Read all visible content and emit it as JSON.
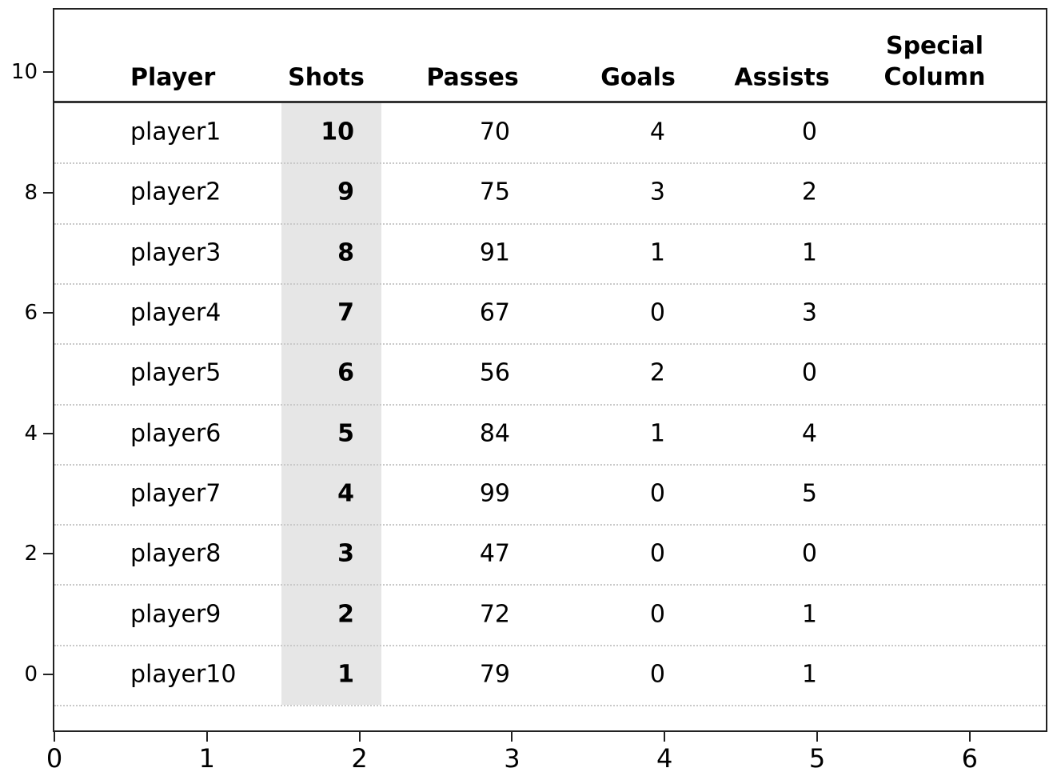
{
  "chart_data": {
    "type": "table",
    "title": "",
    "columns": [
      "Player",
      "Shots",
      "Passes",
      "Goals",
      "Assists",
      "Special Column"
    ],
    "special_column_lines": [
      "Special",
      "Column"
    ],
    "highlighted_column": "Shots",
    "rows": [
      {
        "player": "player1",
        "shots": 10,
        "passes": 70,
        "goals": 4,
        "assists": 0,
        "special": ""
      },
      {
        "player": "player2",
        "shots": 9,
        "passes": 75,
        "goals": 3,
        "assists": 2,
        "special": ""
      },
      {
        "player": "player3",
        "shots": 8,
        "passes": 91,
        "goals": 1,
        "assists": 1,
        "special": ""
      },
      {
        "player": "player4",
        "shots": 7,
        "passes": 67,
        "goals": 0,
        "assists": 3,
        "special": ""
      },
      {
        "player": "player5",
        "shots": 6,
        "passes": 56,
        "goals": 2,
        "assists": 0,
        "special": ""
      },
      {
        "player": "player6",
        "shots": 5,
        "passes": 84,
        "goals": 1,
        "assists": 4,
        "special": ""
      },
      {
        "player": "player7",
        "shots": 4,
        "passes": 99,
        "goals": 0,
        "assists": 5,
        "special": ""
      },
      {
        "player": "player8",
        "shots": 3,
        "passes": 47,
        "goals": 0,
        "assists": 0,
        "special": ""
      },
      {
        "player": "player9",
        "shots": 2,
        "passes": 72,
        "goals": 0,
        "assists": 1,
        "special": ""
      },
      {
        "player": "player10",
        "shots": 1,
        "passes": 79,
        "goals": 0,
        "assists": 1,
        "special": ""
      }
    ],
    "x_axis": {
      "ticks": [
        0,
        1,
        2,
        3,
        4,
        5,
        6
      ],
      "range": [
        0,
        6.5
      ],
      "label": ""
    },
    "y_axis": {
      "ticks": [
        10,
        8,
        6,
        4,
        2,
        0
      ],
      "range": [
        -1,
        11
      ],
      "label": ""
    },
    "grid": "dotted horizontal row separators",
    "legend": "none"
  },
  "colors": {
    "highlight": "#e6e6e6",
    "gridline": "#c9c9c9",
    "spine": "#222222",
    "header_line": "#333333",
    "text": "#000000"
  }
}
